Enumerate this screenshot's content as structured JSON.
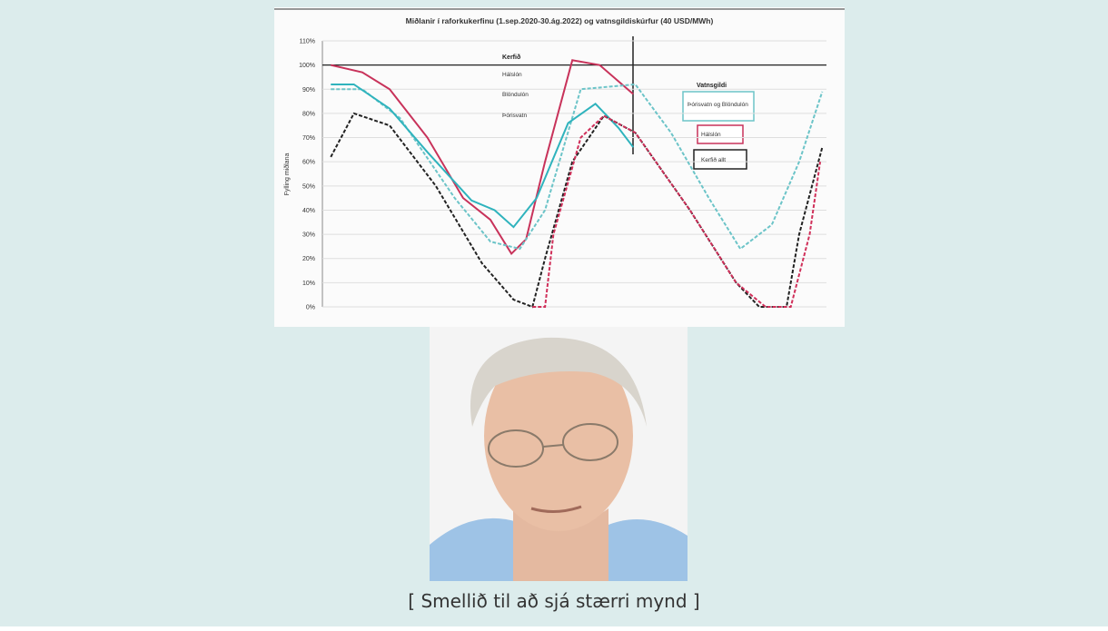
{
  "chart_data": {
    "type": "line",
    "title": "Miðlanir í raforkukerfinu (1.sep.2020-30.ág.2022) og vatnsgildiskúrfur (40 USD/MWh)",
    "y_label": "Fylling miðlana",
    "legend_titles": [
      "Kerfið",
      "Vatnsgildi"
    ],
    "annotation": "Þórisvatn og Blöndulón",
    "xlim": [
      0,
      24
    ],
    "ylim": [
      0,
      110
    ],
    "yticks": [
      {
        "value": 0,
        "label": "0%"
      },
      {
        "value": 10,
        "label": "10%"
      },
      {
        "value": 20,
        "label": "20%"
      },
      {
        "value": 30,
        "label": "30%"
      },
      {
        "value": 40,
        "label": "40%"
      },
      {
        "value": 50,
        "label": "50%"
      },
      {
        "value": 60,
        "label": "60%"
      },
      {
        "value": 70,
        "label": "70%"
      },
      {
        "value": 80,
        "label": "80%"
      },
      {
        "value": 90,
        "label": "90%"
      },
      {
        "value": 100,
        "label": "100%"
      },
      {
        "value": 110,
        "label": "110%"
      }
    ],
    "grid": true,
    "series": [
      {
        "name": "Hálslón",
        "color": "#c8325a",
        "dash": false,
        "x": [
          0.4,
          1.9,
          3.2,
          5.0,
          6.7,
          8.0,
          9.0,
          9.7,
          10.6,
          11.9,
          13.2,
          14.8
        ],
        "values": [
          100,
          97,
          90,
          70,
          45,
          36,
          22,
          28,
          60,
          102,
          100,
          88
        ]
      },
      {
        "name": "Blöndulón",
        "color": "#6cc4c8",
        "dash": true,
        "x": [
          0.4,
          1.9,
          3.7,
          6.3,
          8.0,
          9.4,
          10.6,
          12.3,
          14.9,
          16.6,
          18.4,
          19.9,
          21.4,
          22.7,
          23.8
        ],
        "values": [
          90,
          90,
          78,
          45,
          27,
          24,
          40,
          90,
          92,
          72,
          45,
          24,
          34,
          60,
          89
        ]
      },
      {
        "name": "Þórisvatn",
        "color": "#2fb3bd",
        "dash": false,
        "x": [
          0.4,
          1.5,
          3.2,
          5.0,
          7.1,
          8.2,
          9.1,
          10.2,
          11.7,
          13.0,
          14.1,
          14.8
        ],
        "values": [
          92,
          92,
          82,
          64,
          44,
          40,
          33,
          45,
          76,
          84,
          74,
          66
        ]
      },
      {
        "name": "Kerfið allt",
        "color": "#222222",
        "dash": true,
        "x": [
          0.4,
          1.5,
          3.2,
          5.4,
          7.6,
          9.1,
          10.0,
          10.6,
          11.9,
          13.4,
          14.9,
          17.5,
          19.7,
          20.8,
          22.1,
          22.7,
          23.8
        ],
        "values": [
          62,
          80,
          75,
          50,
          18,
          3,
          0,
          20,
          60,
          79,
          72,
          40,
          10,
          0,
          0,
          30,
          66
        ]
      },
      {
        "name": "Hálslón",
        "color": "#d0305a",
        "dash": true,
        "x": [
          10.0,
          10.6,
          11.0,
          12.3,
          13.4,
          14.9,
          17.5,
          19.7,
          21.1,
          22.3,
          23.2,
          23.7
        ],
        "values": [
          0,
          0,
          30,
          70,
          79,
          72,
          40,
          10,
          0,
          0,
          30,
          60
        ]
      }
    ]
  },
  "caption": "[ Smellið til að sjá stærri mynd ]"
}
